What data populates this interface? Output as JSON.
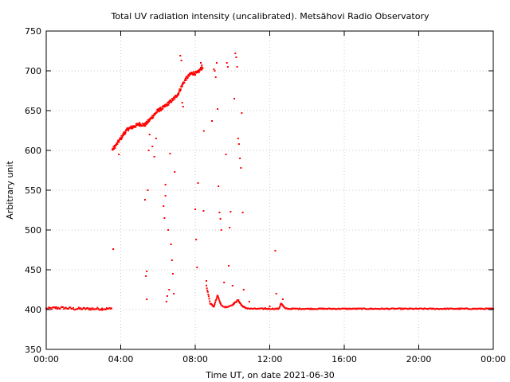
{
  "chart_data": {
    "type": "scatter",
    "title": "Total UV radiation intensity (uncalibrated). Metsähovi Radio Observatory",
    "xlabel": "Time UT, on date 2021-06-30",
    "ylabel": "Arbitrary unit",
    "xlim": [
      0,
      24
    ],
    "ylim": [
      350,
      750
    ],
    "x_unit": "hours UT",
    "x_ticks": [
      {
        "value": 0,
        "label": "00:00"
      },
      {
        "value": 4,
        "label": "04:00"
      },
      {
        "value": 8,
        "label": "08:00"
      },
      {
        "value": 12,
        "label": "12:00"
      },
      {
        "value": 16,
        "label": "16:00"
      },
      {
        "value": 20,
        "label": "20:00"
      },
      {
        "value": 24,
        "label": "00:00"
      }
    ],
    "y_ticks": [
      350,
      400,
      450,
      500,
      550,
      600,
      650,
      700,
      750
    ],
    "grid": true,
    "legend": "none",
    "color": "#ff0000",
    "series": [
      {
        "profile": [
          [
            0.0,
            401
          ],
          [
            0.5,
            402
          ],
          [
            1.0,
            402
          ],
          [
            1.5,
            401
          ],
          [
            2.0,
            401
          ],
          [
            2.5,
            401
          ],
          [
            3.0,
            401
          ],
          [
            3.5,
            401
          ],
          [
            3.55,
            601
          ],
          [
            3.7,
            605
          ],
          [
            4.0,
            615
          ],
          [
            4.2,
            622
          ],
          [
            4.4,
            627
          ],
          [
            4.7,
            630
          ],
          [
            5.0,
            633
          ],
          [
            5.3,
            632
          ],
          [
            5.5,
            637
          ],
          [
            5.8,
            645
          ],
          [
            6.0,
            650
          ],
          [
            6.3,
            654
          ],
          [
            6.6,
            660
          ],
          [
            6.9,
            666
          ],
          [
            7.1,
            672
          ],
          [
            7.3,
            682
          ],
          [
            7.5,
            690
          ],
          [
            7.8,
            697
          ],
          [
            8.1,
            697
          ],
          [
            8.4,
            705
          ],
          [
            8.6,
            430
          ],
          [
            8.8,
            408
          ],
          [
            9.0,
            404
          ],
          [
            9.2,
            418
          ],
          [
            9.4,
            405
          ],
          [
            9.6,
            403
          ],
          [
            9.8,
            404
          ],
          [
            10.0,
            406
          ],
          [
            10.3,
            412
          ],
          [
            10.5,
            405
          ],
          [
            10.7,
            402
          ],
          [
            11.0,
            401
          ],
          [
            12.0,
            401
          ],
          [
            12.5,
            401
          ],
          [
            12.6,
            408
          ],
          [
            12.8,
            402
          ],
          [
            13.0,
            401
          ],
          [
            16.0,
            401
          ],
          [
            20.0,
            401
          ],
          [
            24.0,
            401
          ]
        ],
        "outliers": [
          [
            3.6,
            476
          ],
          [
            3.9,
            595
          ],
          [
            5.3,
            538
          ],
          [
            5.35,
            442
          ],
          [
            5.4,
            448
          ],
          [
            5.4,
            413
          ],
          [
            5.45,
            550
          ],
          [
            5.5,
            600
          ],
          [
            5.55,
            620
          ],
          [
            5.7,
            605
          ],
          [
            5.8,
            592
          ],
          [
            5.9,
            615
          ],
          [
            6.1,
            653
          ],
          [
            6.3,
            530
          ],
          [
            6.35,
            515
          ],
          [
            6.4,
            557
          ],
          [
            6.4,
            543
          ],
          [
            6.45,
            410
          ],
          [
            6.5,
            417
          ],
          [
            6.55,
            500
          ],
          [
            6.6,
            425
          ],
          [
            6.65,
            596
          ],
          [
            6.7,
            482
          ],
          [
            6.75,
            462
          ],
          [
            6.8,
            445
          ],
          [
            6.85,
            420
          ],
          [
            6.9,
            573
          ],
          [
            7.2,
            719
          ],
          [
            7.25,
            713
          ],
          [
            7.3,
            660
          ],
          [
            7.35,
            655
          ],
          [
            8.0,
            526
          ],
          [
            8.05,
            488
          ],
          [
            8.1,
            453
          ],
          [
            8.15,
            559
          ],
          [
            8.3,
            710
          ],
          [
            8.35,
            707
          ],
          [
            8.45,
            524
          ],
          [
            8.6,
            436
          ],
          [
            8.9,
            637
          ],
          [
            9.0,
            702
          ],
          [
            9.05,
            700
          ],
          [
            9.1,
            692
          ],
          [
            9.15,
            710
          ],
          [
            9.2,
            652
          ],
          [
            9.25,
            555
          ],
          [
            9.3,
            522
          ],
          [
            9.35,
            514
          ],
          [
            9.4,
            500
          ],
          [
            9.55,
            434
          ],
          [
            9.65,
            595
          ],
          [
            9.7,
            710
          ],
          [
            9.75,
            705
          ],
          [
            9.8,
            455
          ],
          [
            9.85,
            503
          ],
          [
            9.9,
            523
          ],
          [
            10.0,
            430
          ],
          [
            10.1,
            665
          ],
          [
            10.15,
            722
          ],
          [
            10.2,
            717
          ],
          [
            10.25,
            705
          ],
          [
            10.3,
            615
          ],
          [
            10.35,
            608
          ],
          [
            10.4,
            590
          ],
          [
            10.45,
            578
          ],
          [
            10.5,
            647
          ],
          [
            10.55,
            522
          ],
          [
            10.6,
            425
          ],
          [
            10.9,
            410
          ],
          [
            11.75,
            402
          ],
          [
            12.0,
            404
          ],
          [
            12.3,
            474
          ],
          [
            12.35,
            420
          ],
          [
            12.7,
            413
          ]
        ]
      }
    ]
  }
}
